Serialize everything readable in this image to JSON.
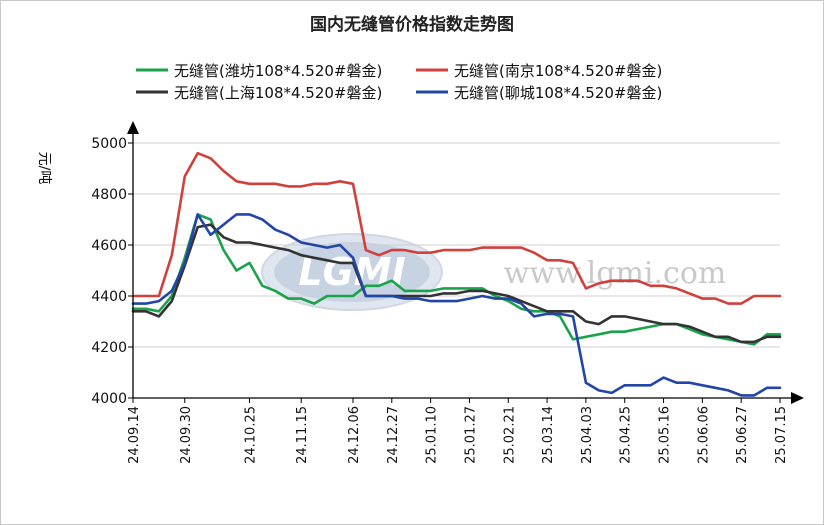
{
  "chart_data": {
    "type": "line",
    "title": "国内无缝管价格指数走势图",
    "ylabel": "元/吨",
    "xlabel": "",
    "ylim": [
      4000,
      5000
    ],
    "yticks": [
      "4000",
      "4200",
      "4400",
      "4600",
      "4800",
      "5000"
    ],
    "grid": "horizontal",
    "legend_position": "top",
    "watermark": {
      "logo": "LGMI",
      "url": "www.lgmi.com"
    },
    "x_tick_labels": [
      "24.09.14",
      "24.09.30",
      "24.10.25",
      "24.11.15",
      "24.12.06",
      "24.12.27",
      "25.01.10",
      "25.01.27",
      "25.02.21",
      "25.03.14",
      "25.04.03",
      "25.04.25",
      "25.05.16",
      "25.06.06",
      "25.06.27",
      "25.07.15"
    ],
    "x": [
      "24.09.14",
      "24.09.18",
      "24.09.23",
      "24.09.27",
      "24.09.30",
      "24.10.10",
      "24.10.15",
      "24.10.18",
      "24.10.21",
      "24.10.25",
      "24.10.30",
      "24.11.05",
      "24.11.10",
      "24.11.15",
      "24.11.22",
      "24.11.29",
      "24.12.02",
      "24.12.06",
      "24.12.13",
      "24.12.20",
      "24.12.27",
      "25.01.01",
      "25.01.06",
      "25.01.10",
      "25.01.14",
      "25.01.20",
      "25.01.27",
      "25.02.07",
      "25.02.14",
      "25.02.21",
      "25.02.28",
      "25.03.07",
      "25.03.14",
      "25.03.21",
      "25.03.28",
      "25.04.03",
      "25.04.10",
      "25.04.17",
      "25.04.25",
      "25.04.30",
      "25.05.09",
      "25.05.16",
      "25.05.23",
      "25.05.30",
      "25.06.06",
      "25.06.13",
      "25.06.20",
      "25.06.27",
      "25.07.04",
      "25.07.11",
      "25.07.15"
    ],
    "series": [
      {
        "name": "无缝管(潍坊108*4.520#磐金)",
        "color": "#1aa34a",
        "values": [
          4350,
          4350,
          4340,
          4400,
          4550,
          4720,
          4700,
          4580,
          4500,
          4530,
          4440,
          4420,
          4390,
          4390,
          4370,
          4400,
          4400,
          4400,
          4440,
          4440,
          4460,
          4420,
          4420,
          4420,
          4430,
          4430,
          4430,
          4430,
          4400,
          4380,
          4350,
          4340,
          4340,
          4320,
          4230,
          4240,
          4250,
          4260,
          4260,
          4270,
          4280,
          4290,
          4290,
          4270,
          4250,
          4240,
          4230,
          4220,
          4210,
          4250,
          4250
        ]
      },
      {
        "name": "无缝管(南京108*4.520#磐金)",
        "color": "#d0413c",
        "values": [
          4400,
          4400,
          4400,
          4560,
          4870,
          4960,
          4940,
          4890,
          4850,
          4840,
          4840,
          4840,
          4830,
          4830,
          4840,
          4840,
          4850,
          4840,
          4580,
          4560,
          4580,
          4580,
          4570,
          4570,
          4580,
          4580,
          4580,
          4590,
          4590,
          4590,
          4590,
          4570,
          4540,
          4540,
          4530,
          4430,
          4450,
          4460,
          4460,
          4460,
          4440,
          4440,
          4430,
          4410,
          4390,
          4390,
          4370,
          4370,
          4400,
          4400,
          4400
        ]
      },
      {
        "name": "无缝管(上海108*4.520#磐金)",
        "color": "#333333",
        "values": [
          4340,
          4340,
          4320,
          4380,
          4520,
          4670,
          4680,
          4630,
          4610,
          4610,
          4600,
          4590,
          4580,
          4560,
          4550,
          4540,
          4530,
          4530,
          4400,
          4400,
          4400,
          4400,
          4400,
          4400,
          4410,
          4410,
          4420,
          4420,
          4410,
          4400,
          4380,
          4360,
          4340,
          4340,
          4340,
          4300,
          4290,
          4320,
          4320,
          4310,
          4300,
          4290,
          4290,
          4280,
          4260,
          4240,
          4240,
          4220,
          4220,
          4240,
          4240
        ]
      },
      {
        "name": "无缝管(聊城108*4.520#磐金)",
        "color": "#2345a8",
        "values": [
          4370,
          4370,
          4380,
          4420,
          4530,
          4720,
          4640,
          4680,
          4720,
          4720,
          4700,
          4660,
          4640,
          4610,
          4600,
          4590,
          4600,
          4550,
          4400,
          4400,
          4400,
          4390,
          4390,
          4380,
          4380,
          4380,
          4390,
          4400,
          4390,
          4390,
          4370,
          4320,
          4330,
          4330,
          4320,
          4060,
          4030,
          4020,
          4050,
          4050,
          4050,
          4080,
          4060,
          4060,
          4050,
          4040,
          4030,
          4010,
          4010,
          4040,
          4040
        ]
      }
    ]
  }
}
